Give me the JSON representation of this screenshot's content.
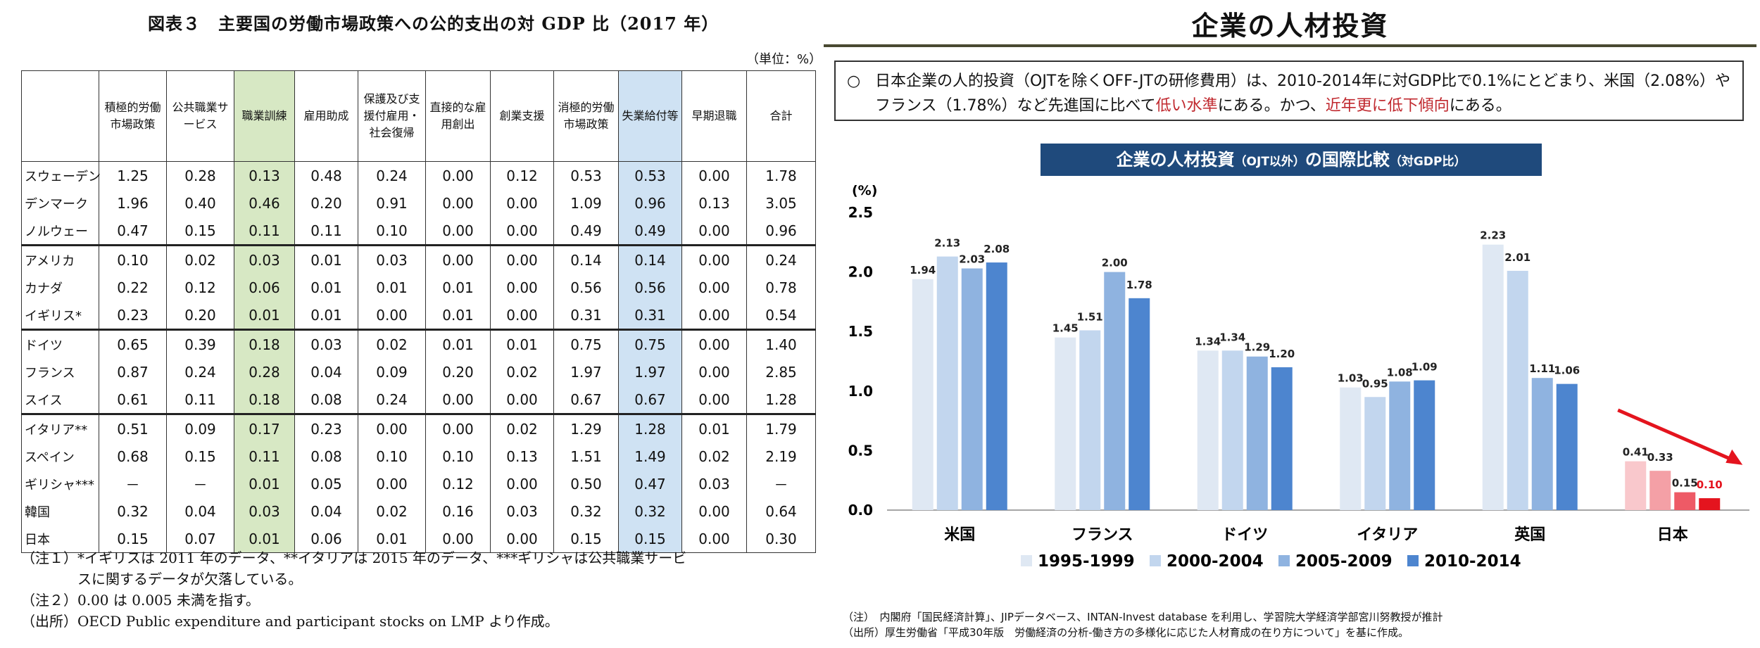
{
  "left_table": {
    "title": "図表３　主要国の労働市場政策への公的支出の対 GDP 比（2017 年）",
    "unit": "（単位：%）",
    "headers": [
      "積極的労働市場政策",
      "公共職業サービス",
      "職業訓練",
      "雇用助成",
      "保護及び支援付雇用・社会復帰",
      "直接的な雇用創出",
      "創業支援",
      "消極的労働市場政策",
      "失業給付等",
      "早期退職",
      "合計"
    ],
    "rows": [
      {
        "country": "スウェーデン",
        "values": [
          "1.25",
          "0.28",
          "0.13",
          "0.48",
          "0.24",
          "0.00",
          "0.12",
          "0.53",
          "0.53",
          "0.00",
          "1.78"
        ]
      },
      {
        "country": "デンマーク",
        "values": [
          "1.96",
          "0.40",
          "0.46",
          "0.20",
          "0.91",
          "0.00",
          "0.00",
          "1.09",
          "0.96",
          "0.13",
          "3.05"
        ]
      },
      {
        "country": "ノルウェー",
        "values": [
          "0.47",
          "0.15",
          "0.11",
          "0.11",
          "0.10",
          "0.00",
          "0.00",
          "0.49",
          "0.49",
          "0.00",
          "0.96"
        ]
      },
      {
        "country": "アメリカ",
        "values": [
          "0.10",
          "0.02",
          "0.03",
          "0.01",
          "0.03",
          "0.00",
          "0.00",
          "0.14",
          "0.14",
          "0.00",
          "0.24"
        ]
      },
      {
        "country": "カナダ",
        "values": [
          "0.22",
          "0.12",
          "0.06",
          "0.01",
          "0.01",
          "0.01",
          "0.00",
          "0.56",
          "0.56",
          "0.00",
          "0.78"
        ]
      },
      {
        "country": "イギリス*",
        "values": [
          "0.23",
          "0.20",
          "0.01",
          "0.01",
          "0.00",
          "0.01",
          "0.00",
          "0.31",
          "0.31",
          "0.00",
          "0.54"
        ]
      },
      {
        "country": "ドイツ",
        "values": [
          "0.65",
          "0.39",
          "0.18",
          "0.03",
          "0.02",
          "0.01",
          "0.01",
          "0.75",
          "0.75",
          "0.00",
          "1.40"
        ]
      },
      {
        "country": "フランス",
        "values": [
          "0.87",
          "0.24",
          "0.28",
          "0.04",
          "0.09",
          "0.20",
          "0.02",
          "1.97",
          "1.97",
          "0.00",
          "2.85"
        ]
      },
      {
        "country": "スイス",
        "values": [
          "0.61",
          "0.11",
          "0.18",
          "0.08",
          "0.24",
          "0.00",
          "0.00",
          "0.67",
          "0.67",
          "0.00",
          "1.28"
        ]
      },
      {
        "country": "イタリア**",
        "values": [
          "0.51",
          "0.09",
          "0.17",
          "0.23",
          "0.00",
          "0.00",
          "0.02",
          "1.29",
          "1.28",
          "0.01",
          "1.79"
        ]
      },
      {
        "country": "スペイン",
        "values": [
          "0.68",
          "0.15",
          "0.11",
          "0.08",
          "0.10",
          "0.10",
          "0.13",
          "1.51",
          "1.49",
          "0.02",
          "2.19"
        ]
      },
      {
        "country": "ギリシャ***",
        "values": [
          "－",
          "－",
          "0.01",
          "0.05",
          "0.00",
          "0.12",
          "0.00",
          "0.50",
          "0.47",
          "0.03",
          "－"
        ]
      },
      {
        "country": "韓国",
        "values": [
          "0.32",
          "0.04",
          "0.03",
          "0.04",
          "0.02",
          "0.16",
          "0.03",
          "0.32",
          "0.32",
          "0.00",
          "0.64"
        ]
      },
      {
        "country": "日本",
        "values": [
          "0.15",
          "0.07",
          "0.01",
          "0.06",
          "0.01",
          "0.00",
          "0.00",
          "0.15",
          "0.15",
          "0.00",
          "0.30"
        ]
      }
    ],
    "notes": [
      "（注１）*イギリスは 2011 年のデータ、**イタリアは 2015 年のデータ、***ギリシャは公共職業サービ",
      "　　　　スに関するデータが欠落している。",
      "（注２）0.00 は 0.005 未満を指す。",
      "（出所）OECD Public expenditure and participant stocks on LMP より作成。"
    ]
  },
  "right_panel": {
    "title": "企業の人材投資",
    "summary": {
      "bullet": "○",
      "part1": "日本企業の人的投資（OJTを除くOFF-JTの研修費用）は、2010-2014年に対GDP比で0.1%にとどまり、米国（2.08%）やフランス（1.78%）など先進国に比べて",
      "red1": "低い水準",
      "part2": "にある。かつ、",
      "red2": "近年更に低下傾向",
      "part3": "にある。"
    },
    "chart_title_main": "企業の人材投資",
    "chart_title_sub1": "（OJT以外）",
    "chart_title_mid": "の国際比較",
    "chart_title_sub2": "（対GDP比）",
    "notes": [
      "（注）　内閣府「国民経済計算」、JIPデータベース、INTAN-Invest database を利用し、学習院大学経済学部宮川努教授が推計",
      "（出所）厚生労働省「平成30年版　労働経済の分析-働き方の多様化に応じた人材育成の在り方について」を基に作成。"
    ]
  },
  "chart_data": {
    "type": "bar",
    "title": "企業の人材投資（OJT以外）の国際比較（対GDP比）",
    "ylabel": "(%)",
    "xlabel": "",
    "ylim": [
      0,
      2.5
    ],
    "yticks": [
      "0.0",
      "0.5",
      "1.0",
      "1.5",
      "2.0",
      "2.5"
    ],
    "categories": [
      "米国",
      "フランス",
      "ドイツ",
      "イタリア",
      "英国",
      "日本"
    ],
    "series": [
      {
        "name": "1995-1999",
        "values": [
          1.94,
          1.45,
          1.34,
          1.03,
          2.23,
          0.41
        ],
        "labels": [
          "1.94",
          "1.45",
          "1.34",
          "1.03",
          "2.23",
          "0.41"
        ],
        "color": "#dfe8f3"
      },
      {
        "name": "2000-2004",
        "values": [
          2.13,
          1.51,
          1.34,
          0.95,
          2.01,
          0.33
        ],
        "labels": [
          "2.13",
          "1.51",
          "1.34",
          "0.95",
          "2.01",
          "0.33"
        ],
        "color": "#c2d6ee"
      },
      {
        "name": "2005-2009",
        "values": [
          2.03,
          2.0,
          1.29,
          1.08,
          1.11,
          0.15
        ],
        "labels": [
          "2.03",
          "2.00",
          "1.29",
          "1.08",
          "1.11",
          "0.15"
        ],
        "color": "#8fb3e0"
      },
      {
        "name": "2010-2014",
        "values": [
          2.08,
          1.78,
          1.2,
          1.09,
          1.06,
          0.1
        ],
        "labels": [
          "2.08",
          "1.78",
          "1.20",
          "1.09",
          "1.06",
          "0.10"
        ],
        "color": "#4d85cf"
      }
    ],
    "japan_colors": [
      "#f9c8cc",
      "#f4a0a6",
      "#ee5a66",
      "#e4141e"
    ],
    "trend_arrow_color": "#e4141e",
    "legend_position": "bottom"
  }
}
